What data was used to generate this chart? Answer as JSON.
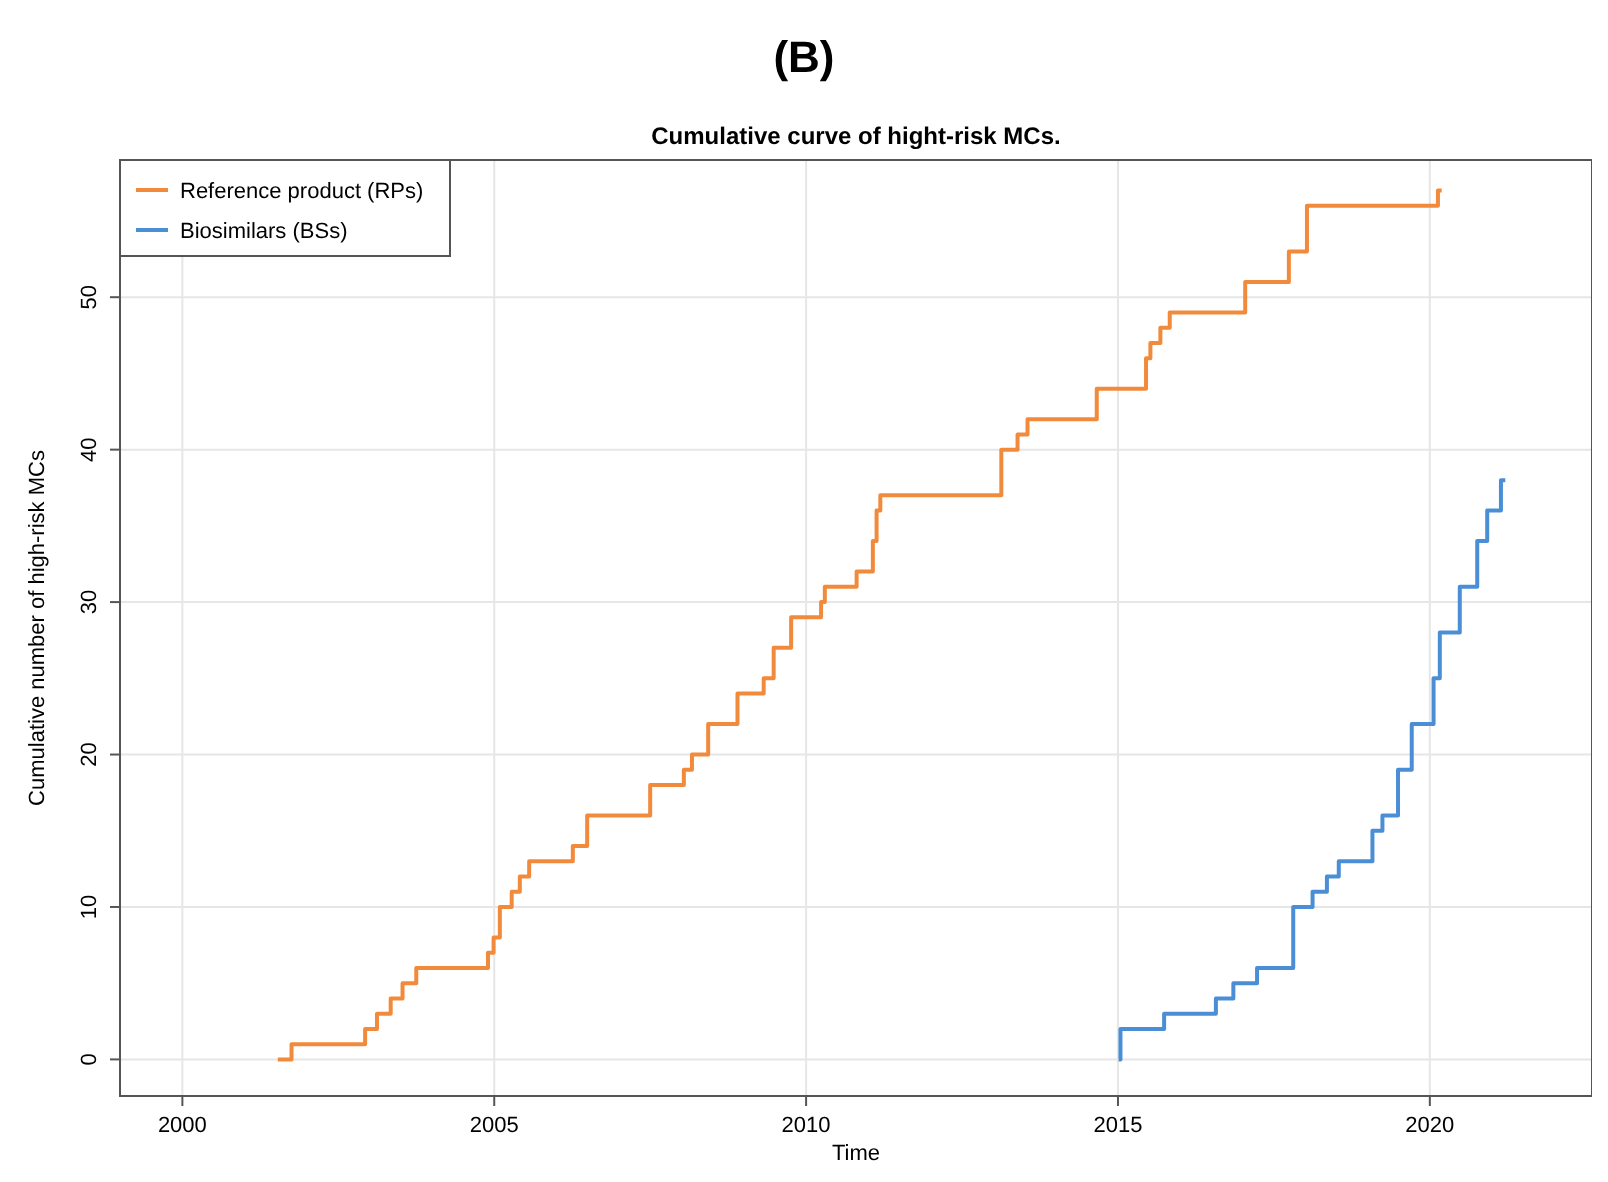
{
  "chart_data": {
    "type": "step",
    "title": "Cumulative curve of hight-risk MCs.",
    "xlabel": "Time",
    "ylabel": "Cumulative number of high-risk MCs",
    "annotations": [
      "(B)"
    ],
    "xlim": [
      1999,
      2022.6
    ],
    "xticks": [
      2000,
      2005,
      2010,
      2015,
      2020
    ],
    "ylim": [
      -2.4,
      59
    ],
    "yticks": [
      0,
      10,
      20,
      30,
      40,
      50
    ],
    "grid": true,
    "legend": "top left",
    "series": [
      {
        "name": "Reference product (RPs)",
        "color": "#f28a3c",
        "x": [
          2001.53,
          2001.75,
          2002.93,
          2003.12,
          2003.34,
          2003.53,
          2003.75,
          2004.9,
          2004.99,
          2005.09,
          2005.28,
          2005.41,
          2005.56,
          2006.26,
          2006.49,
          2007.5,
          2008.04,
          2008.17,
          2008.43,
          2008.9,
          2009.32,
          2009.48,
          2009.76,
          2010.24,
          2010.3,
          2010.81,
          2011.07,
          2011.13,
          2011.19,
          2013.13,
          2013.39,
          2013.55,
          2014.66,
          2015.45,
          2015.52,
          2015.68,
          2015.83,
          2017.04,
          2017.74,
          2018.03,
          2020.13,
          2020.19
        ],
        "values": [
          0,
          1,
          2,
          3,
          4,
          5,
          6,
          7,
          8,
          10,
          11,
          12,
          13,
          14,
          16,
          18,
          19,
          20,
          22,
          24,
          25,
          27,
          29,
          30,
          31,
          32,
          34,
          36,
          37,
          40,
          41,
          42,
          44,
          46,
          47,
          48,
          49,
          51,
          53,
          56,
          57,
          57
        ]
      },
      {
        "name": "Biosimilars (BSs)",
        "color": "#4a8fd6",
        "x": [
          2015.01,
          2015.04,
          2015.74,
          2016.57,
          2016.85,
          2017.23,
          2017.81,
          2018.12,
          2018.35,
          2018.54,
          2019.08,
          2019.24,
          2019.49,
          2019.71,
          2020.06,
          2020.16,
          2020.48,
          2020.76,
          2020.92,
          2021.14,
          2021.21
        ],
        "values": [
          0,
          2,
          3,
          4,
          5,
          6,
          10,
          11,
          12,
          13,
          15,
          16,
          19,
          22,
          25,
          28,
          31,
          34,
          36,
          38,
          38
        ]
      }
    ]
  }
}
